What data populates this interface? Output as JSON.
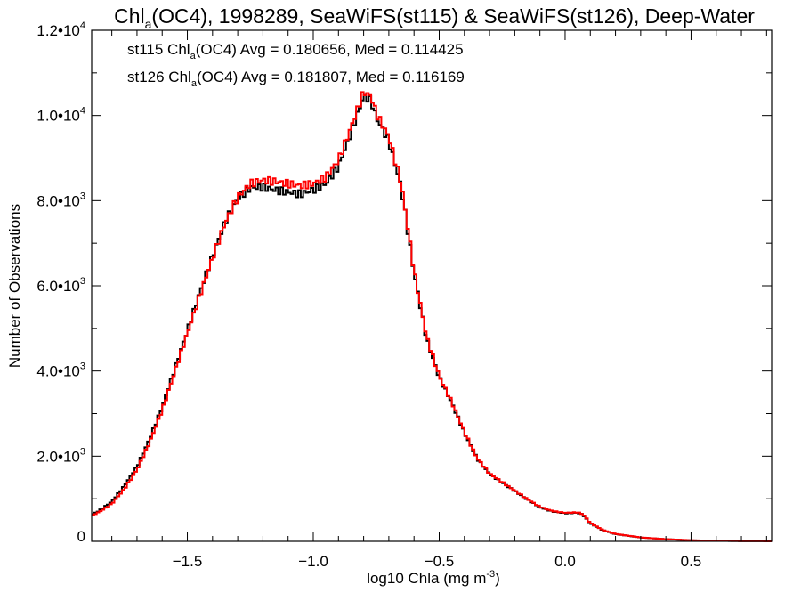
{
  "chart_data": {
    "type": "line",
    "title": "Chla(OC4), 1998289, SeaWiFS(st115) & SeaWiFS(st126), Deep-Water",
    "title_parts": {
      "pre": "Chl",
      "sub": "a",
      "post": "(OC4), 1998289, SeaWiFS(st115) & SeaWiFS(st126), Deep-Water"
    },
    "xlabel": "log10 Chla (mg m-3)",
    "xlabel_parts": {
      "pre": "log10 Chla (mg m",
      "sup": "-3",
      "post": ")"
    },
    "ylabel": "Number of Observations",
    "xlim": [
      -1.88,
      0.82
    ],
    "ylim": [
      0,
      12000
    ],
    "x_ticks": [
      {
        "value": -1.5,
        "label": "-1.5"
      },
      {
        "value": -1.0,
        "label": "-1.0"
      },
      {
        "value": -0.5,
        "label": "-0.5"
      },
      {
        "value": 0.0,
        "label": "0.0"
      },
      {
        "value": 0.5,
        "label": "0.5"
      }
    ],
    "y_ticks": [
      {
        "value": 0,
        "mant": "0",
        "exp": ""
      },
      {
        "value": 2000,
        "mant": "2.0•10",
        "exp": "3"
      },
      {
        "value": 4000,
        "mant": "4.0•10",
        "exp": "3"
      },
      {
        "value": 6000,
        "mant": "6.0•10",
        "exp": "3"
      },
      {
        "value": 8000,
        "mant": "8.0•10",
        "exp": "3"
      },
      {
        "value": 10000,
        "mant": "1.0•10",
        "exp": "4"
      },
      {
        "value": 12000,
        "mant": "1.2•10",
        "exp": "4"
      }
    ],
    "grid": false,
    "x_step": 0.01,
    "series": [
      {
        "name": "st115",
        "color": "#000000",
        "legend": {
          "pre": "st115 Chl",
          "sub": "a",
          "post": "(OC4) Avg = 0.180656, Med = 0.114425"
        },
        "points": [
          [
            -1.88,
            620
          ],
          [
            -1.85,
            720
          ],
          [
            -1.8,
            930
          ],
          [
            -1.75,
            1300
          ],
          [
            -1.7,
            1750
          ],
          [
            -1.65,
            2400
          ],
          [
            -1.6,
            3150
          ],
          [
            -1.55,
            4050
          ],
          [
            -1.5,
            4950
          ],
          [
            -1.45,
            5850
          ],
          [
            -1.4,
            6700
          ],
          [
            -1.35,
            7500
          ],
          [
            -1.3,
            8050
          ],
          [
            -1.25,
            8300
          ],
          [
            -1.2,
            8320
          ],
          [
            -1.15,
            8250
          ],
          [
            -1.1,
            8200
          ],
          [
            -1.05,
            8150
          ],
          [
            -1.0,
            8250
          ],
          [
            -0.95,
            8400
          ],
          [
            -0.9,
            8800
          ],
          [
            -0.85,
            9600
          ],
          [
            -0.8,
            10450
          ],
          [
            -0.77,
            10350
          ],
          [
            -0.75,
            9950
          ],
          [
            -0.7,
            9400
          ],
          [
            -0.65,
            8300
          ],
          [
            -0.62,
            7100
          ],
          [
            -0.6,
            6300
          ],
          [
            -0.55,
            4750
          ],
          [
            -0.5,
            3850
          ],
          [
            -0.45,
            3250
          ],
          [
            -0.4,
            2550
          ],
          [
            -0.35,
            1950
          ],
          [
            -0.3,
            1580
          ],
          [
            -0.25,
            1380
          ],
          [
            -0.2,
            1180
          ],
          [
            -0.15,
            980
          ],
          [
            -0.1,
            800
          ],
          [
            -0.05,
            700
          ],
          [
            0.0,
            660
          ],
          [
            0.05,
            670
          ],
          [
            0.07,
            630
          ],
          [
            0.1,
            420
          ],
          [
            0.15,
            260
          ],
          [
            0.2,
            170
          ],
          [
            0.3,
            90
          ],
          [
            0.4,
            50
          ],
          [
            0.5,
            25
          ],
          [
            0.6,
            12
          ],
          [
            0.7,
            6
          ],
          [
            0.82,
            3
          ]
        ]
      },
      {
        "name": "st126",
        "color": "#ff0000",
        "legend": {
          "pre": "st126 Chl",
          "sub": "a",
          "post": "(OC4) Avg = 0.181807, Med = 0.116169"
        },
        "points": [
          [
            -1.88,
            600
          ],
          [
            -1.85,
            690
          ],
          [
            -1.8,
            880
          ],
          [
            -1.75,
            1230
          ],
          [
            -1.7,
            1680
          ],
          [
            -1.65,
            2320
          ],
          [
            -1.6,
            3080
          ],
          [
            -1.55,
            3980
          ],
          [
            -1.5,
            4880
          ],
          [
            -1.45,
            5780
          ],
          [
            -1.4,
            6650
          ],
          [
            -1.35,
            7480
          ],
          [
            -1.3,
            8080
          ],
          [
            -1.25,
            8400
          ],
          [
            -1.2,
            8480
          ],
          [
            -1.15,
            8450
          ],
          [
            -1.1,
            8400
          ],
          [
            -1.05,
            8350
          ],
          [
            -1.0,
            8400
          ],
          [
            -0.95,
            8550
          ],
          [
            -0.9,
            8950
          ],
          [
            -0.85,
            9720
          ],
          [
            -0.8,
            10550
          ],
          [
            -0.77,
            10450
          ],
          [
            -0.75,
            10050
          ],
          [
            -0.7,
            9500
          ],
          [
            -0.65,
            8380
          ],
          [
            -0.62,
            7180
          ],
          [
            -0.6,
            6350
          ],
          [
            -0.55,
            4800
          ],
          [
            -0.5,
            3880
          ],
          [
            -0.45,
            3270
          ],
          [
            -0.4,
            2570
          ],
          [
            -0.35,
            1960
          ],
          [
            -0.3,
            1590
          ],
          [
            -0.25,
            1390
          ],
          [
            -0.2,
            1190
          ],
          [
            -0.15,
            990
          ],
          [
            -0.1,
            810
          ],
          [
            -0.05,
            710
          ],
          [
            0.0,
            670
          ],
          [
            0.05,
            680
          ],
          [
            0.07,
            640
          ],
          [
            0.1,
            430
          ],
          [
            0.15,
            265
          ],
          [
            0.2,
            175
          ],
          [
            0.3,
            92
          ],
          [
            0.4,
            52
          ],
          [
            0.5,
            26
          ],
          [
            0.6,
            13
          ],
          [
            0.7,
            6
          ],
          [
            0.82,
            3
          ]
        ]
      }
    ]
  }
}
